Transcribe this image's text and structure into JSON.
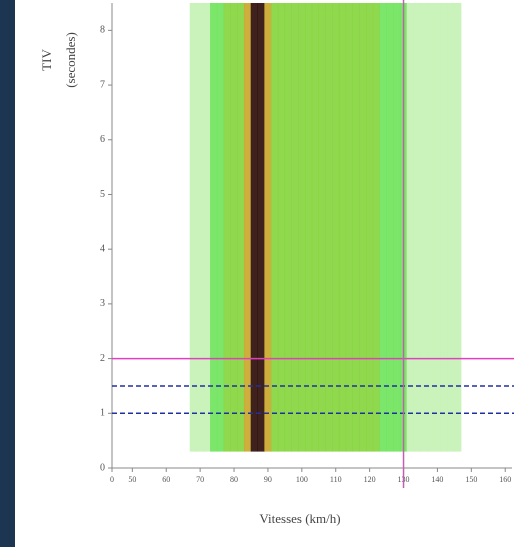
{
  "chart_data": {
    "type": "density",
    "y_label": "TIV",
    "y_label_unit": "(secondes)",
    "x_label": "Vitesses (km/h)",
    "x": [
      68,
      70,
      72,
      74,
      76,
      78,
      80,
      82,
      84,
      86,
      88,
      90,
      92,
      94,
      96,
      98,
      100,
      102,
      104,
      106,
      108,
      110,
      112,
      114,
      116,
      118,
      120,
      122,
      124,
      126,
      128,
      130,
      132,
      134,
      136,
      138,
      140,
      142,
      144,
      146
    ],
    "values": [
      0.05,
      0.1,
      0.2,
      0.3,
      0.4,
      0.5,
      0.55,
      0.6,
      0.7,
      1.0,
      1.0,
      0.75,
      0.6,
      0.6,
      0.6,
      0.6,
      0.62,
      0.62,
      0.62,
      0.62,
      0.6,
      0.6,
      0.6,
      0.58,
      0.56,
      0.55,
      0.52,
      0.5,
      0.45,
      0.4,
      0.35,
      0.3,
      0.25,
      0.2,
      0.15,
      0.12,
      0.1,
      0.07,
      0.05,
      0.03
    ],
    "levels": [
      0.25,
      0.45,
      0.65,
      0.9
    ],
    "colors": [
      "#c4f2b4",
      "#6ee35a",
      "#84d43a",
      "#c9a528",
      "#2a0a05"
    ],
    "xlim": [
      44,
      162
    ],
    "ylim": [
      0,
      8.5
    ],
    "xticks": [
      0,
      50,
      60,
      70,
      80,
      90,
      100,
      110,
      120,
      130,
      140,
      150,
      160
    ],
    "yticks": [
      0,
      1,
      2,
      3,
      4,
      5,
      6,
      7,
      8
    ],
    "axis_break": true,
    "hlines": [
      {
        "y": 2,
        "color": "#e040c0",
        "dash": false
      },
      {
        "y": 1.5,
        "color": "#2030a0",
        "dash": true
      },
      {
        "y": 1,
        "color": "#2030a0",
        "dash": true
      }
    ],
    "vlines": [
      {
        "x": 130,
        "color": "#c060b0"
      }
    ]
  }
}
